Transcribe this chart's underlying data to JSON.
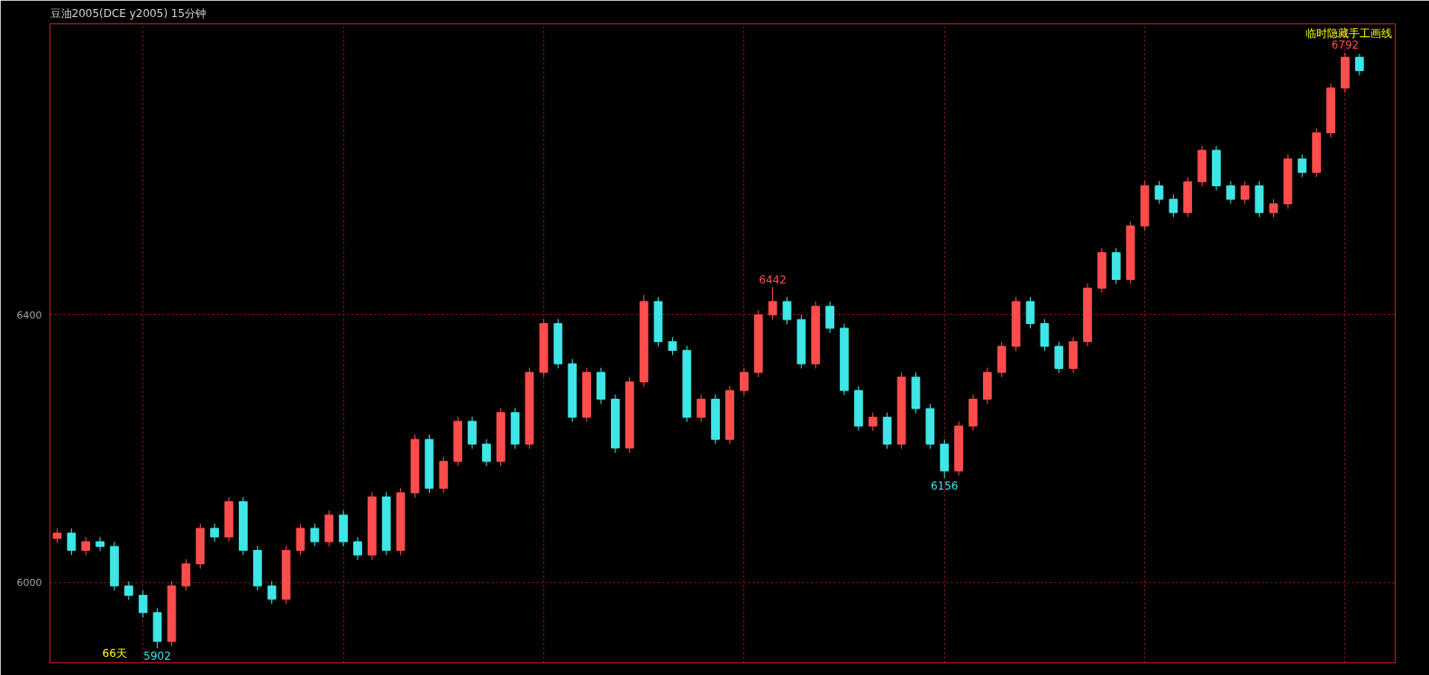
{
  "chart_data": {
    "type": "candlestick",
    "title": "豆油2005(DCE y2005)  15分钟",
    "categories": [
      null,
      null,
      null,
      null,
      null,
      null,
      null,
      null,
      null,
      null,
      null,
      null,
      null,
      null,
      null,
      null,
      null,
      null,
      null,
      null,
      null,
      null,
      null,
      null,
      null,
      null,
      null,
      null,
      null,
      null,
      null,
      null,
      null,
      null,
      null,
      null,
      null,
      null,
      null,
      null,
      null,
      null,
      null,
      null,
      null,
      null,
      null,
      null,
      null,
      null,
      null,
      null,
      null,
      null,
      null,
      null,
      null,
      null,
      null,
      null,
      null,
      null,
      null,
      null,
      null,
      null,
      null,
      null,
      null,
      null,
      null,
      null,
      null,
      null,
      null,
      null,
      null,
      null,
      null,
      null,
      null,
      null,
      null,
      null,
      null,
      null,
      null,
      null,
      null,
      null,
      null,
      null
    ],
    "ohlc": [
      [
        6066,
        6081,
        6059,
        6074
      ],
      [
        6074,
        6081,
        6041,
        6048
      ],
      [
        6048,
        6068,
        6041,
        6061
      ],
      [
        6061,
        6068,
        6047,
        6054
      ],
      [
        6054,
        6061,
        5988,
        5995
      ],
      [
        5995,
        6002,
        5974,
        5981
      ],
      [
        5981,
        5988,
        5948,
        5955
      ],
      [
        5955,
        5962,
        5902,
        5912
      ],
      [
        5912,
        6002,
        5905,
        5995
      ],
      [
        5995,
        6035,
        5988,
        6028
      ],
      [
        6028,
        6088,
        6021,
        6081
      ],
      [
        6081,
        6088,
        6061,
        6068
      ],
      [
        6068,
        6128,
        6061,
        6121
      ],
      [
        6121,
        6128,
        6041,
        6048
      ],
      [
        6048,
        6055,
        5988,
        5995
      ],
      [
        5995,
        6002,
        5968,
        5975
      ],
      [
        5975,
        6055,
        5968,
        6048
      ],
      [
        6048,
        6088,
        6041,
        6081
      ],
      [
        6081,
        6088,
        6054,
        6061
      ],
      [
        6061,
        6108,
        6054,
        6101
      ],
      [
        6101,
        6108,
        6054,
        6061
      ],
      [
        6061,
        6068,
        6034,
        6041
      ],
      [
        6041,
        6135,
        6034,
        6128
      ],
      [
        6128,
        6135,
        6041,
        6048
      ],
      [
        6048,
        6141,
        6041,
        6134
      ],
      [
        6134,
        6221,
        6127,
        6214
      ],
      [
        6214,
        6221,
        6134,
        6141
      ],
      [
        6141,
        6188,
        6134,
        6181
      ],
      [
        6181,
        6248,
        6174,
        6241
      ],
      [
        6241,
        6248,
        6200,
        6207
      ],
      [
        6207,
        6214,
        6174,
        6181
      ],
      [
        6181,
        6261,
        6174,
        6254
      ],
      [
        6254,
        6261,
        6200,
        6207
      ],
      [
        6207,
        6321,
        6200,
        6314
      ],
      [
        6314,
        6394,
        6307,
        6387
      ],
      [
        6387,
        6394,
        6320,
        6327
      ],
      [
        6327,
        6334,
        6240,
        6247
      ],
      [
        6247,
        6321,
        6240,
        6314
      ],
      [
        6314,
        6321,
        6267,
        6274
      ],
      [
        6274,
        6281,
        6194,
        6201
      ],
      [
        6201,
        6307,
        6194,
        6300
      ],
      [
        6300,
        6430,
        6293,
        6420
      ],
      [
        6420,
        6427,
        6353,
        6360
      ],
      [
        6360,
        6367,
        6340,
        6347
      ],
      [
        6347,
        6354,
        6240,
        6247
      ],
      [
        6247,
        6281,
        6240,
        6274
      ],
      [
        6274,
        6281,
        6207,
        6214
      ],
      [
        6214,
        6294,
        6207,
        6287
      ],
      [
        6287,
        6321,
        6280,
        6314
      ],
      [
        6314,
        6407,
        6307,
        6400
      ],
      [
        6400,
        6442,
        6393,
        6420
      ],
      [
        6420,
        6427,
        6386,
        6393
      ],
      [
        6393,
        6400,
        6320,
        6327
      ],
      [
        6327,
        6420,
        6320,
        6413
      ],
      [
        6413,
        6420,
        6373,
        6380
      ],
      [
        6380,
        6387,
        6280,
        6287
      ],
      [
        6287,
        6294,
        6227,
        6234
      ],
      [
        6234,
        6254,
        6227,
        6247
      ],
      [
        6247,
        6254,
        6200,
        6207
      ],
      [
        6207,
        6314,
        6200,
        6307
      ],
      [
        6307,
        6314,
        6253,
        6260
      ],
      [
        6260,
        6267,
        6200,
        6207
      ],
      [
        6207,
        6214,
        6156,
        6167
      ],
      [
        6167,
        6241,
        6160,
        6234
      ],
      [
        6234,
        6281,
        6227,
        6274
      ],
      [
        6274,
        6321,
        6267,
        6314
      ],
      [
        6314,
        6360,
        6307,
        6353
      ],
      [
        6353,
        6427,
        6346,
        6420
      ],
      [
        6420,
        6427,
        6380,
        6387
      ],
      [
        6387,
        6394,
        6346,
        6353
      ],
      [
        6353,
        6360,
        6313,
        6320
      ],
      [
        6320,
        6367,
        6313,
        6360
      ],
      [
        6360,
        6447,
        6353,
        6440
      ],
      [
        6440,
        6500,
        6433,
        6493
      ],
      [
        6493,
        6500,
        6446,
        6453
      ],
      [
        6453,
        6540,
        6446,
        6533
      ],
      [
        6533,
        6600,
        6526,
        6593
      ],
      [
        6593,
        6600,
        6566,
        6573
      ],
      [
        6573,
        6580,
        6546,
        6553
      ],
      [
        6553,
        6606,
        6546,
        6599
      ],
      [
        6599,
        6653,
        6592,
        6646
      ],
      [
        6646,
        6653,
        6586,
        6593
      ],
      [
        6593,
        6600,
        6566,
        6573
      ],
      [
        6573,
        6600,
        6566,
        6593
      ],
      [
        6593,
        6600,
        6546,
        6553
      ],
      [
        6553,
        6573,
        6546,
        6566
      ],
      [
        6566,
        6640,
        6559,
        6633
      ],
      [
        6633,
        6640,
        6606,
        6613
      ],
      [
        6613,
        6679,
        6606,
        6672
      ],
      [
        6672,
        6746,
        6665,
        6739
      ],
      [
        6739,
        6792,
        6732,
        6785
      ],
      [
        6785,
        6790,
        6758,
        6765
      ]
    ],
    "colors": [
      "#ff4d4d",
      "#3ee6e6",
      "#ff4d4d",
      "#3ee6e6",
      "#3ee6e6",
      "#3ee6e6",
      "#3ee6e6",
      "#3ee6e6",
      "#ff4d4d",
      "#ff4d4d",
      "#ff4d4d",
      "#3ee6e6",
      "#ff4d4d",
      "#3ee6e6",
      "#3ee6e6",
      "#3ee6e6",
      "#ff4d4d",
      "#ff4d4d",
      "#3ee6e6",
      "#ff4d4d",
      "#3ee6e6",
      "#3ee6e6",
      "#ff4d4d",
      "#3ee6e6",
      "#ff4d4d",
      "#ff4d4d",
      "#3ee6e6",
      "#ff4d4d",
      "#ff4d4d",
      "#3ee6e6",
      "#3ee6e6",
      "#ff4d4d",
      "#3ee6e6",
      "#ff4d4d",
      "#ff4d4d",
      "#3ee6e6",
      "#3ee6e6",
      "#ff4d4d",
      "#3ee6e6",
      "#3ee6e6",
      "#ff4d4d",
      "#ff4d4d",
      "#3ee6e6",
      "#3ee6e6",
      "#3ee6e6",
      "#ff4d4d",
      "#3ee6e6",
      "#ff4d4d",
      "#ff4d4d",
      "#ff4d4d",
      "#ff4d4d",
      "#3ee6e6",
      "#3ee6e6",
      "#ff4d4d",
      "#3ee6e6",
      "#3ee6e6",
      "#3ee6e6",
      "#ff4d4d",
      "#3ee6e6",
      "#ff4d4d",
      "#3ee6e6",
      "#3ee6e6",
      "#3ee6e6",
      "#ff4d4d",
      "#ff4d4d",
      "#ff4d4d",
      "#ff4d4d",
      "#ff4d4d",
      "#3ee6e6",
      "#3ee6e6",
      "#3ee6e6",
      "#ff4d4d",
      "#ff4d4d",
      "#ff4d4d",
      "#3ee6e6",
      "#ff4d4d",
      "#ff4d4d",
      "#3ee6e6",
      "#3ee6e6",
      "#ff4d4d",
      "#ff4d4d",
      "#3ee6e6",
      "#3ee6e6",
      "#ff4d4d",
      "#3ee6e6",
      "#ff4d4d",
      "#ff4d4d",
      "#3ee6e6",
      "#ff4d4d",
      "#ff4d4d",
      "#ff4d4d",
      "#3ee6e6"
    ],
    "ylim": [
      5880,
      6835
    ],
    "yticks": [
      6000,
      6400
    ],
    "grid": true,
    "tick_labels": "y",
    "annotations": [
      "临时隐藏手工画线",
      "66天",
      {
        "text": "6792",
        "y": 6792
      },
      {
        "text": "6442",
        "y": 6442
      },
      {
        "text": "6156",
        "y": 6156
      },
      {
        "text": "5902",
        "y": 5902
      }
    ]
  }
}
